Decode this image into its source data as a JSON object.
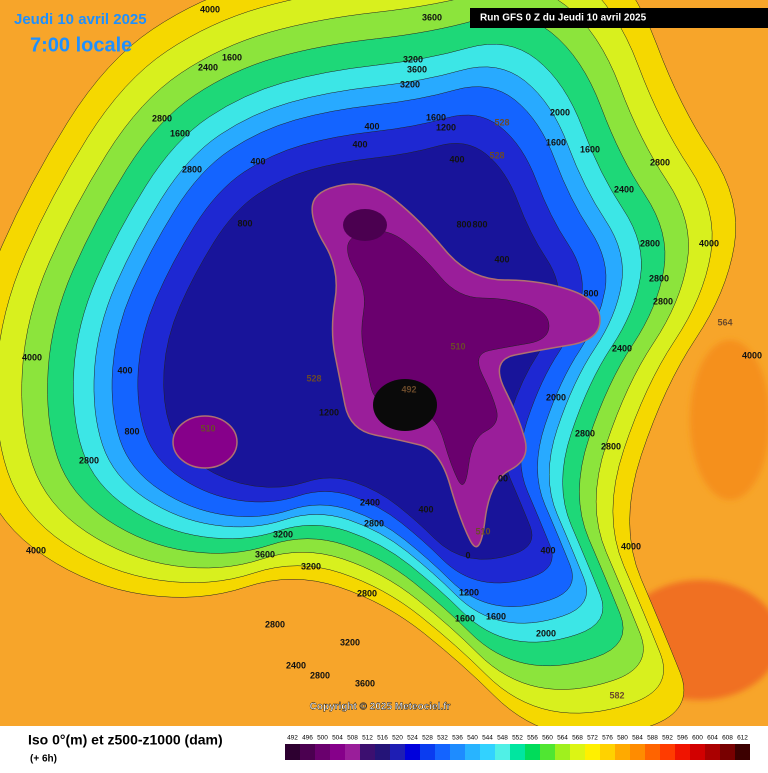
{
  "header": {
    "date": "Jeudi 10 avril 2025",
    "time": "7:00 locale",
    "run": "Run GFS 0 Z du Jeudi 10 avril 2025"
  },
  "map": {
    "copyright": "Copyright © 2025 Meteociel.fr",
    "labels": [
      "4000",
      "3600",
      "2400",
      "1600",
      "3200",
      "3600",
      "3200",
      "2800",
      "1600",
      "400",
      "1600",
      "1200",
      "528",
      "2000",
      "1600",
      "400",
      "400",
      "2800",
      "400",
      "528",
      "1600",
      "2800",
      "2400",
      "800",
      "800",
      "800",
      "4000",
      "2800",
      "400",
      "2800",
      "800",
      "2800",
      "564",
      "4000",
      "510",
      "2400",
      "4000",
      "492",
      "528",
      "2000",
      "2800",
      "510",
      "2800",
      "2800",
      "1200",
      "00",
      "2400",
      "2800",
      "400",
      "510",
      "400",
      "3200",
      "3600",
      "4000",
      "4000",
      "3200",
      "2800",
      "1200",
      "1600",
      "1600",
      "2800",
      "2000",
      "2400",
      "3200",
      "2800",
      "3600",
      "582",
      "400",
      "800",
      "0"
    ]
  },
  "footer": {
    "title": "Iso 0°(m) et z500-z1000 (dam)",
    "step": "(+ 6h)",
    "legend": {
      "values": [
        492,
        496,
        500,
        504,
        508,
        512,
        516,
        520,
        524,
        528,
        532,
        536,
        540,
        544,
        548,
        552,
        556,
        560,
        564,
        568,
        572,
        576,
        580,
        584,
        588,
        592,
        596,
        600,
        604,
        608,
        612
      ],
      "colors": [
        "#2d0030",
        "#4b0050",
        "#6a006e",
        "#86008a",
        "#9a1e9a",
        "#3c0f70",
        "#241478",
        "#1e1eb4",
        "#0000dc",
        "#0a3cf0",
        "#1464ff",
        "#1e8cff",
        "#28b4ff",
        "#32d2ff",
        "#50f0e6",
        "#00e6a0",
        "#00dc5a",
        "#50e632",
        "#a0f01e",
        "#dcf514",
        "#fff000",
        "#ffd200",
        "#ffaa00",
        "#ff8c00",
        "#ff6400",
        "#ff3c00",
        "#f01400",
        "#d20000",
        "#aa0000",
        "#780000",
        "#3c0000"
      ]
    }
  }
}
